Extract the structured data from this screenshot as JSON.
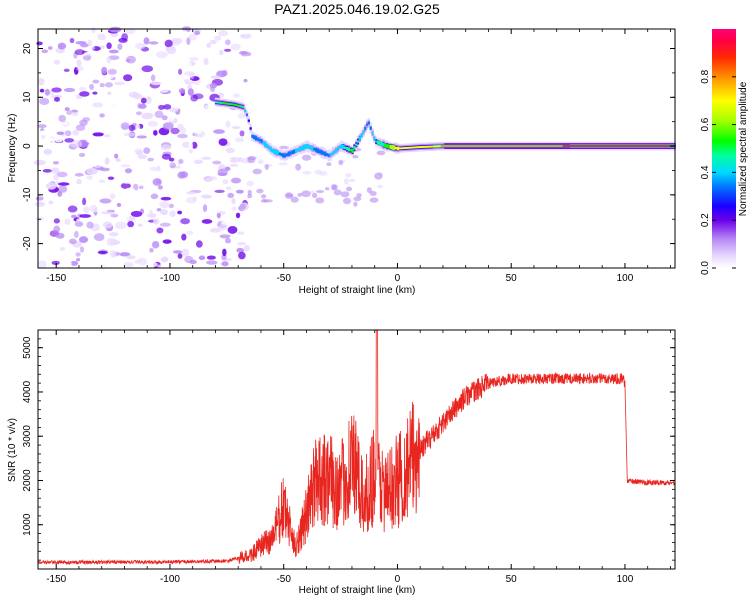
{
  "title": "PAZ1.2025.046.19.02.G25",
  "chart_data": [
    {
      "type": "heatmap",
      "name": "spectrogram",
      "xlabel": "Height of straight line (km)",
      "ylabel": "Frequency (Hz)",
      "xlim": [
        -158,
        122
      ],
      "ylim": [
        -25,
        24
      ],
      "xticks": [
        -150,
        -100,
        -50,
        0,
        50,
        100
      ],
      "yticks": [
        -20,
        -10,
        0,
        10,
        20
      ],
      "colorbar": {
        "label": "Normalized spectral amplitude",
        "range": [
          0,
          1
        ],
        "ticks": [
          0.0,
          0.2,
          0.4,
          0.6,
          0.8
        ]
      },
      "ridge": {
        "x": [
          -80,
          -72,
          -68,
          -66,
          -64,
          -60,
          -55,
          -50,
          -45,
          -40,
          -35,
          -30,
          -25,
          -20,
          -15,
          -13,
          -10,
          -5,
          0,
          10,
          20,
          40,
          60,
          80,
          100,
          122
        ],
        "y": [
          9,
          8.5,
          8,
          6,
          2,
          1,
          -1,
          -2,
          -1,
          0,
          -1,
          -2,
          0,
          -1,
          3,
          5,
          1,
          0,
          -0.5,
          -0.2,
          0,
          0,
          0,
          0,
          0,
          0
        ],
        "amplitude": [
          0.5,
          0.6,
          0.5,
          0.3,
          0.35,
          0.4,
          0.45,
          0.35,
          0.4,
          0.45,
          0.35,
          0.4,
          0.45,
          0.55,
          0.4,
          0.35,
          0.45,
          0.55,
          0.75,
          0.7,
          0.8,
          0.85,
          0.85,
          0.9,
          0.9,
          0.9
        ]
      },
      "noise_region_x": [
        -158,
        -72
      ]
    },
    {
      "type": "line",
      "name": "snr",
      "xlabel": "Height of straight line (km)",
      "ylabel": "SNR (10 * v/v)",
      "xlim": [
        -158,
        122
      ],
      "ylim": [
        0,
        5400
      ],
      "xticks": [
        -150,
        -100,
        -50,
        0,
        50,
        100
      ],
      "yticks": [
        1000,
        2000,
        3000,
        4000,
        5000
      ],
      "color": "#e8251f",
      "envelope": {
        "x": [
          -158,
          -100,
          -75,
          -65,
          -55,
          -50,
          -45,
          -40,
          -35,
          -30,
          -25,
          -20,
          -15,
          -10,
          -5,
          0,
          10,
          20,
          30,
          40,
          50,
          60,
          70,
          80,
          90,
          99,
          100,
          101,
          110,
          122
        ],
        "y": [
          150,
          160,
          180,
          300,
          700,
          1400,
          500,
          1200,
          2200,
          2000,
          1800,
          2500,
          1500,
          2200,
          1700,
          2000,
          2700,
          3300,
          3900,
          4200,
          4300,
          4300,
          4300,
          4300,
          4300,
          4300,
          4200,
          2000,
          1950,
          1950
        ]
      },
      "spike": {
        "x": -9,
        "y": 5400
      }
    }
  ]
}
